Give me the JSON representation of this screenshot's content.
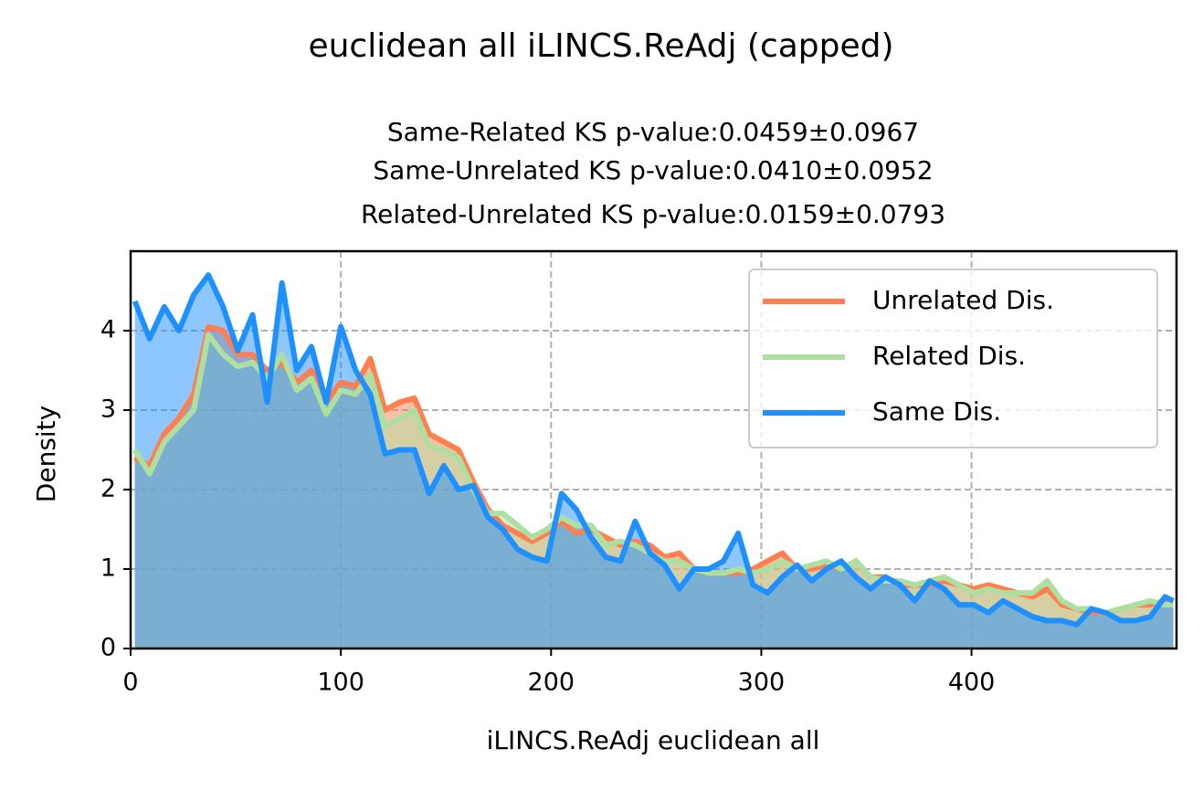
{
  "chart_data": {
    "type": "line",
    "title": "euclidean all iLINCS.ReAdj (capped)",
    "subtitle": [
      "Same-Related KS p-value:0.0459±0.0967",
      "Same-Unrelated KS p-value:0.0410±0.0952",
      "Related-Unrelated KS p-value:0.0159±0.0793"
    ],
    "x_label": "iLINCS.ReAdj euclidean all",
    "y_label": "Density",
    "xlim": [
      0,
      497.5
    ],
    "ylim": [
      0,
      5.0
    ],
    "xticks": [
      0,
      100,
      200,
      300,
      400
    ],
    "yticks": [
      0,
      1,
      2,
      3,
      4
    ],
    "grid": true,
    "legend": "upper right",
    "fill": true,
    "x": [
      2,
      9,
      16,
      23,
      30,
      37,
      44,
      51,
      58,
      65,
      72,
      79,
      86,
      93,
      100,
      107,
      114,
      121,
      128,
      135,
      142,
      149,
      156,
      163,
      170,
      177,
      184,
      191,
      198,
      205,
      212,
      219,
      226,
      233,
      240,
      247,
      254,
      261,
      268,
      275,
      282,
      289,
      296,
      303,
      310,
      317,
      324,
      331,
      338,
      345,
      352,
      359,
      366,
      373,
      380,
      387,
      394,
      401,
      408,
      415,
      422,
      429,
      436,
      443,
      450,
      457,
      464,
      471,
      478,
      485,
      492,
      496
    ],
    "series": [
      {
        "name": "Unrelated Dis.",
        "color": "#ff7f50",
        "values": [
          2.4,
          2.3,
          2.7,
          2.9,
          3.2,
          4.05,
          4.0,
          3.7,
          3.7,
          3.5,
          3.6,
          3.35,
          3.5,
          3.1,
          3.35,
          3.3,
          3.65,
          3.0,
          3.1,
          3.15,
          2.7,
          2.6,
          2.5,
          2.1,
          1.75,
          1.55,
          1.45,
          1.35,
          1.45,
          1.6,
          1.45,
          1.5,
          1.4,
          1.3,
          1.35,
          1.3,
          1.15,
          1.2,
          1.0,
          0.95,
          0.95,
          0.95,
          1.0,
          1.1,
          1.2,
          1.0,
          1.0,
          1.05,
          1.0,
          1.1,
          0.9,
          0.9,
          0.8,
          0.8,
          0.8,
          0.85,
          0.8,
          0.75,
          0.8,
          0.75,
          0.7,
          0.65,
          0.75,
          0.55,
          0.5,
          0.45,
          0.45,
          0.5,
          0.55,
          0.55,
          0.6,
          0.6
        ]
      },
      {
        "name": "Related Dis.",
        "color": "#addfa0",
        "values": [
          2.5,
          2.2,
          2.6,
          2.8,
          3.0,
          3.95,
          3.7,
          3.55,
          3.6,
          3.4,
          3.7,
          3.25,
          3.4,
          2.95,
          3.25,
          3.2,
          3.45,
          2.8,
          2.9,
          3.0,
          2.55,
          2.5,
          2.4,
          2.0,
          1.7,
          1.7,
          1.55,
          1.4,
          1.5,
          1.65,
          1.55,
          1.55,
          1.3,
          1.35,
          1.3,
          1.2,
          1.1,
          1.1,
          1.0,
          0.95,
          0.95,
          1.0,
          0.95,
          1.0,
          1.1,
          1.0,
          1.05,
          1.1,
          1.0,
          1.1,
          0.9,
          0.85,
          0.85,
          0.8,
          0.85,
          0.9,
          0.8,
          0.7,
          0.75,
          0.7,
          0.7,
          0.7,
          0.85,
          0.6,
          0.5,
          0.5,
          0.45,
          0.5,
          0.55,
          0.6,
          0.55,
          0.55
        ]
      },
      {
        "name": "Same Dis.",
        "color": "#1e90ff",
        "values": [
          4.37,
          3.9,
          4.3,
          4.0,
          4.45,
          4.7,
          4.3,
          3.75,
          4.2,
          3.1,
          4.6,
          3.5,
          3.8,
          3.1,
          4.05,
          3.5,
          3.2,
          2.45,
          2.5,
          2.5,
          1.95,
          2.3,
          2.0,
          2.05,
          1.65,
          1.5,
          1.25,
          1.15,
          1.1,
          1.95,
          1.75,
          1.4,
          1.15,
          1.1,
          1.6,
          1.2,
          1.05,
          0.75,
          1.0,
          1.0,
          1.1,
          1.45,
          0.8,
          0.7,
          0.9,
          1.05,
          0.85,
          1.0,
          1.1,
          0.9,
          0.75,
          0.9,
          0.8,
          0.6,
          0.85,
          0.75,
          0.55,
          0.55,
          0.45,
          0.6,
          0.5,
          0.4,
          0.35,
          0.35,
          0.3,
          0.5,
          0.45,
          0.35,
          0.35,
          0.4,
          0.65,
          0.6
        ]
      }
    ]
  }
}
